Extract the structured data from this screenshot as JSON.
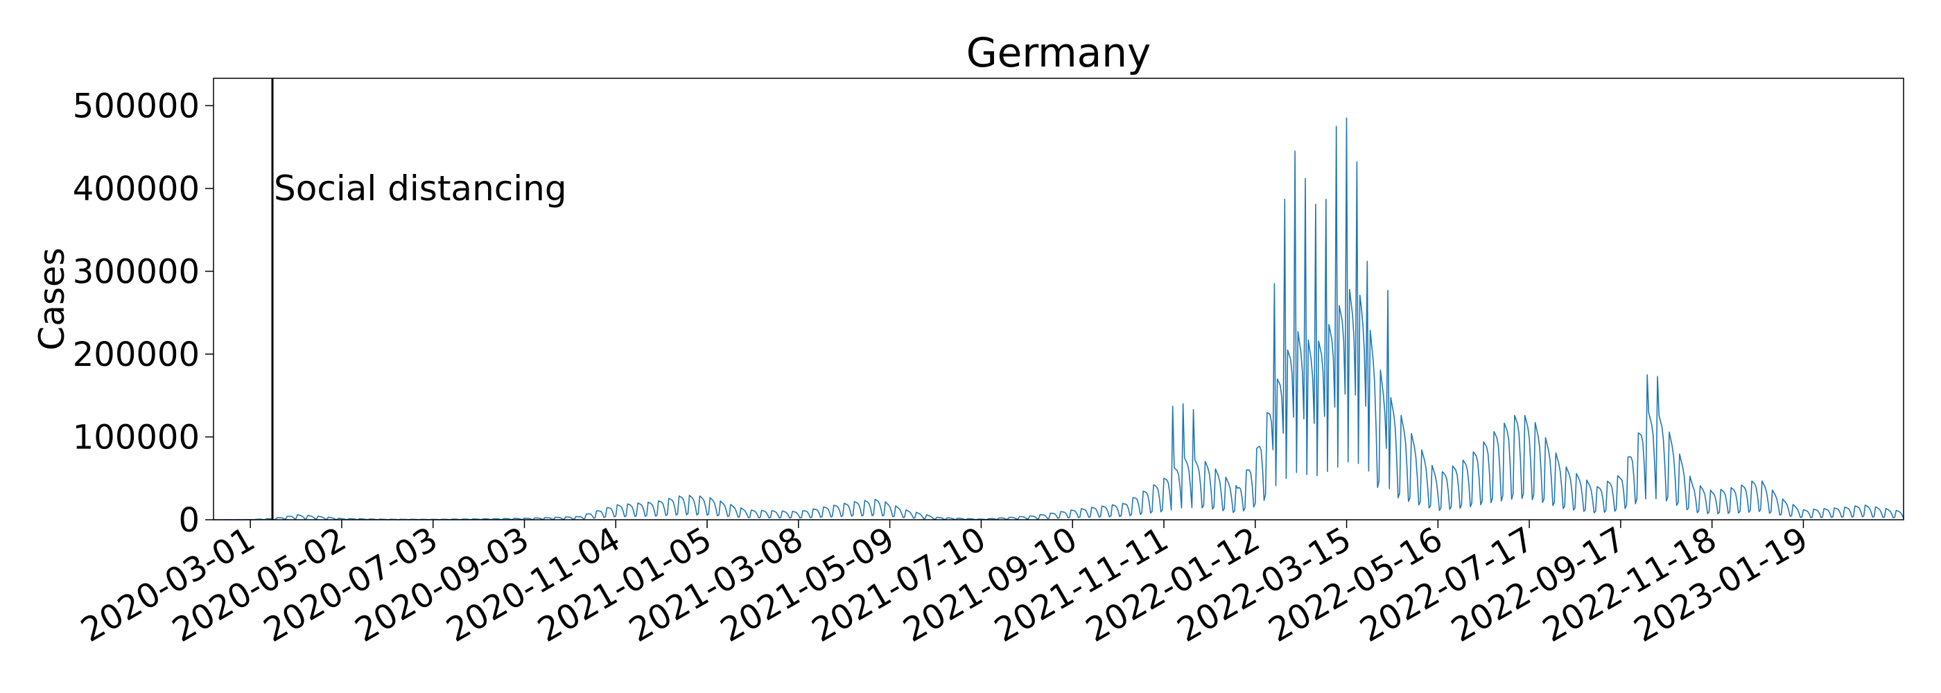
{
  "chart_data": {
    "type": "line",
    "title": "Germany",
    "xlabel": "",
    "ylabel": "Cases",
    "grid": false,
    "legend": "none",
    "line_color": "#1f77b4",
    "x_range": [
      "2020-02-05",
      "2023-03-28"
    ],
    "ylim": [
      0,
      533000
    ],
    "yticks": [
      0,
      100000,
      200000,
      300000,
      400000,
      500000
    ],
    "ytick_labels": [
      "0",
      "100000",
      "200000",
      "300000",
      "400000",
      "500000"
    ],
    "xticks": [
      "2020-03-01",
      "2020-05-02",
      "2020-07-03",
      "2020-09-03",
      "2020-11-04",
      "2021-01-05",
      "2021-03-08",
      "2021-05-09",
      "2021-07-10",
      "2021-09-10",
      "2021-11-11",
      "2022-01-12",
      "2022-03-15",
      "2022-05-16",
      "2022-07-17",
      "2022-09-17",
      "2022-11-18",
      "2023-01-19"
    ],
    "annotations": [
      {
        "date": "2020-03-16",
        "label": "Social distancing"
      }
    ],
    "series": [
      {
        "start_date": "2020-02-05",
        "end_date": "2023-03-28",
        "weekly_pattern": [
          0.25,
          1.0,
          0.95,
          0.9,
          0.8,
          0.55,
          0.2
        ],
        "envelope": [
          [
            "2020-02-05",
            0
          ],
          [
            "2020-03-01",
            200
          ],
          [
            "2020-03-16",
            1500
          ],
          [
            "2020-04-02",
            6000
          ],
          [
            "2020-04-15",
            4500
          ],
          [
            "2020-05-02",
            1500
          ],
          [
            "2020-06-01",
            600
          ],
          [
            "2020-07-03",
            500
          ],
          [
            "2020-08-10",
            1200
          ],
          [
            "2020-09-03",
            1800
          ],
          [
            "2020-10-10",
            4000
          ],
          [
            "2020-11-04",
            18000
          ],
          [
            "2020-12-01",
            22000
          ],
          [
            "2020-12-20",
            30000
          ],
          [
            "2021-01-05",
            28000
          ],
          [
            "2021-02-01",
            12000
          ],
          [
            "2021-03-08",
            10000
          ],
          [
            "2021-04-15",
            22000
          ],
          [
            "2021-05-01",
            25000
          ],
          [
            "2021-05-20",
            12000
          ],
          [
            "2021-06-10",
            3000
          ],
          [
            "2021-07-10",
            700
          ],
          [
            "2021-08-15",
            5000
          ],
          [
            "2021-09-10",
            12000
          ],
          [
            "2021-10-15",
            20000
          ],
          [
            "2021-11-11",
            50000
          ],
          [
            "2021-11-25",
            75000
          ],
          [
            "2021-12-10",
            70000
          ],
          [
            "2021-12-31",
            40000
          ],
          [
            "2022-01-12",
            80000
          ],
          [
            "2022-01-25",
            160000
          ],
          [
            "2022-02-08",
            230000
          ],
          [
            "2022-02-22",
            210000
          ],
          [
            "2022-03-08",
            250000
          ],
          [
            "2022-03-15",
            280000
          ],
          [
            "2022-03-25",
            270000
          ],
          [
            "2022-04-10",
            160000
          ],
          [
            "2022-05-01",
            95000
          ],
          [
            "2022-05-16",
            55000
          ],
          [
            "2022-06-05",
            75000
          ],
          [
            "2022-06-25",
            110000
          ],
          [
            "2022-07-10",
            130000
          ],
          [
            "2022-07-20",
            120000
          ],
          [
            "2022-08-10",
            65000
          ],
          [
            "2022-09-01",
            40000
          ],
          [
            "2022-09-17",
            55000
          ],
          [
            "2022-10-05",
            130000
          ],
          [
            "2022-10-15",
            125000
          ],
          [
            "2022-11-05",
            45000
          ],
          [
            "2022-11-18",
            35000
          ],
          [
            "2022-12-05",
            40000
          ],
          [
            "2022-12-20",
            50000
          ],
          [
            "2023-01-05",
            25000
          ],
          [
            "2023-01-19",
            12000
          ],
          [
            "2023-02-15",
            15000
          ],
          [
            "2023-03-01",
            18000
          ],
          [
            "2023-03-28",
            10000
          ]
        ],
        "peaks": [
          [
            "2021-11-17",
            137000
          ],
          [
            "2021-11-24",
            140000
          ],
          [
            "2021-12-01",
            133000
          ],
          [
            "2022-01-25",
            285000
          ],
          [
            "2022-02-01",
            387000
          ],
          [
            "2022-02-08",
            445000
          ],
          [
            "2022-02-15",
            412000
          ],
          [
            "2022-02-22",
            381000
          ],
          [
            "2022-03-01",
            387000
          ],
          [
            "2022-03-08",
            475000
          ],
          [
            "2022-03-15",
            485000
          ],
          [
            "2022-03-22",
            432000
          ],
          [
            "2022-03-29",
            312000
          ],
          [
            "2022-04-12",
            277000
          ],
          [
            "2022-10-05",
            175000
          ],
          [
            "2022-10-12",
            173000
          ]
        ]
      }
    ]
  }
}
